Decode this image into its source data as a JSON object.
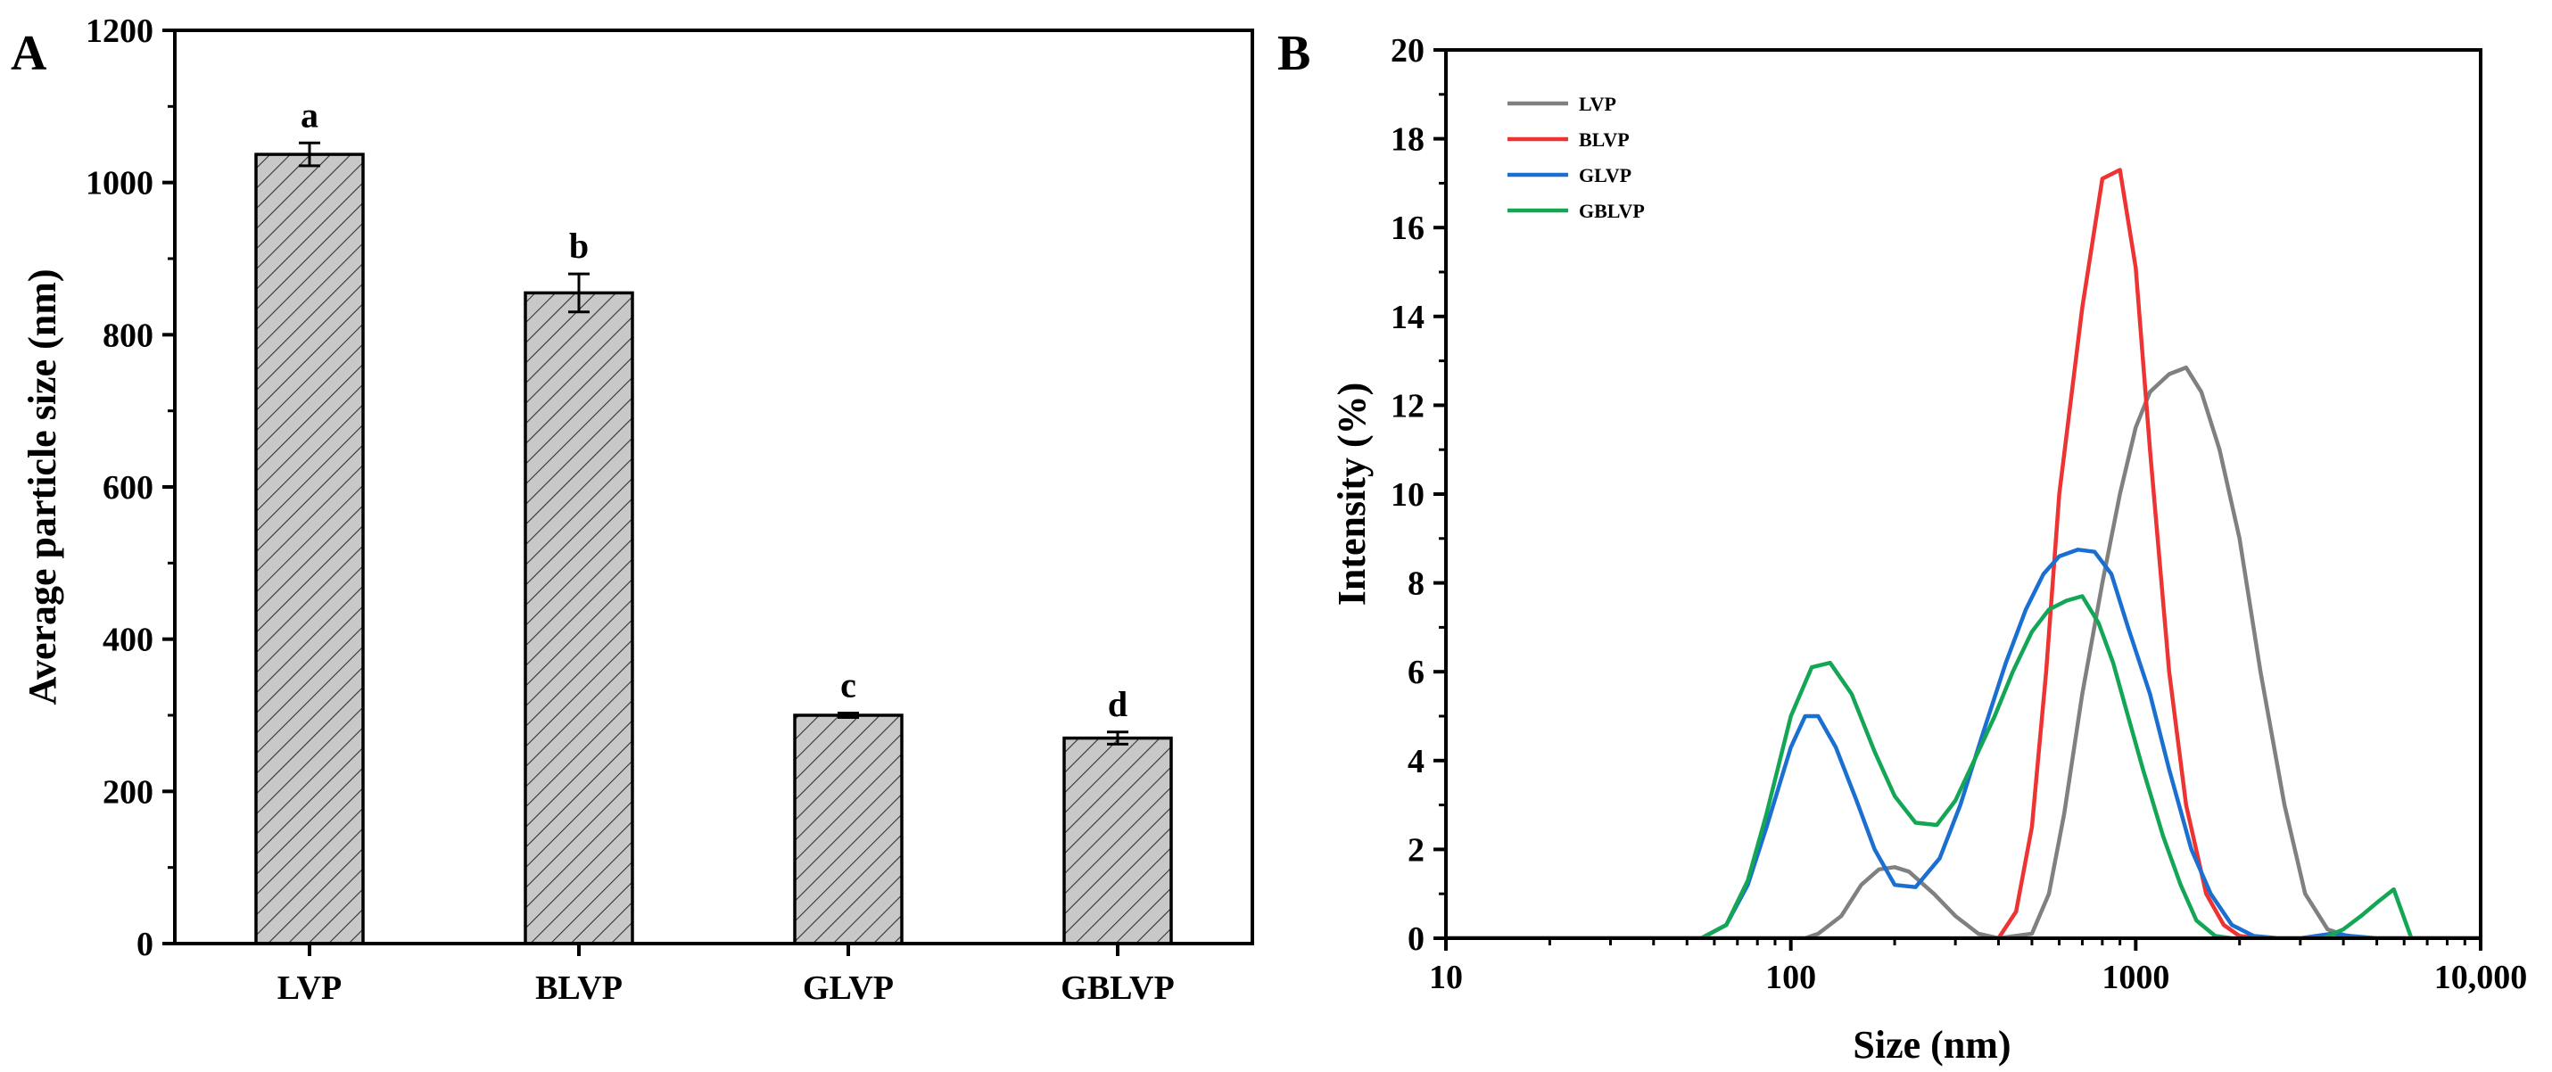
{
  "chart_data": [
    {
      "panel": "A",
      "type": "bar",
      "title": "",
      "xlabel": "",
      "ylabel": "Average particle size (nm)",
      "ylim": [
        0,
        1200
      ],
      "yticks": [
        "0",
        "200",
        "400",
        "600",
        "800",
        "1000",
        "1200"
      ],
      "categories": [
        "LVP",
        "BLVP",
        "GLVP",
        "GBLVP"
      ],
      "values": [
        1037,
        855,
        300,
        270
      ],
      "errors": [
        15,
        25,
        3,
        8
      ],
      "significance": [
        "a",
        "b",
        "c",
        "d"
      ],
      "colors": {
        "bar_fill": "#c8c8c8",
        "hatch": "#333333"
      }
    },
    {
      "panel": "B",
      "type": "line",
      "title": "",
      "xlabel": "Size (nm)",
      "ylabel": "Intensity (%)",
      "xscale": "log",
      "xlim": [
        10,
        10000
      ],
      "ylim": [
        0,
        20
      ],
      "xticks": [
        "10",
        "100",
        "1000",
        "10,000"
      ],
      "yticks": [
        "0",
        "2",
        "4",
        "6",
        "8",
        "10",
        "12",
        "14",
        "16",
        "18",
        "20"
      ],
      "legend_position": "top-left",
      "series": [
        {
          "name": "LVP",
          "color": "#808080",
          "x": [
            10,
            110,
            120,
            140,
            160,
            180,
            200,
            220,
            260,
            300,
            350,
            400,
            500,
            560,
            620,
            700,
            800,
            900,
            1000,
            1100,
            1250,
            1400,
            1550,
            1750,
            2000,
            2300,
            2700,
            3100,
            3600,
            4100,
            4700,
            6000,
            10000
          ],
          "y": [
            0,
            0,
            0.1,
            0.5,
            1.2,
            1.55,
            1.6,
            1.5,
            1.0,
            0.5,
            0.1,
            0,
            0.1,
            1.0,
            2.8,
            5.5,
            8.0,
            10.0,
            11.5,
            12.3,
            12.7,
            12.85,
            12.3,
            11.0,
            9.0,
            6.0,
            3.0,
            1.0,
            0.2,
            0.05,
            0,
            0,
            0
          ]
        },
        {
          "name": "BLVP",
          "color": "#ee3333",
          "x": [
            10,
            350,
            400,
            450,
            500,
            550,
            600,
            700,
            800,
            900,
            1000,
            1100,
            1250,
            1400,
            1600,
            1800,
            2000,
            2300,
            10000
          ],
          "y": [
            0,
            0,
            0,
            0.6,
            2.5,
            6.0,
            10.0,
            14.2,
            17.1,
            17.3,
            15.1,
            11.0,
            6.0,
            3.0,
            1.0,
            0.3,
            0.05,
            0,
            0
          ]
        },
        {
          "name": "GLVP",
          "color": "#1a6fd0",
          "x": [
            10,
            55,
            65,
            75,
            85,
            100,
            110,
            120,
            135,
            155,
            175,
            200,
            230,
            270,
            310,
            360,
            420,
            480,
            540,
            600,
            680,
            760,
            850,
            950,
            1100,
            1250,
            1450,
            1650,
            1900,
            2200,
            2600,
            3000,
            3700,
            4200,
            5000,
            6000,
            10000
          ],
          "y": [
            0,
            0,
            0.3,
            1.2,
            2.5,
            4.3,
            5.0,
            5.0,
            4.3,
            3.1,
            2.0,
            1.2,
            1.15,
            1.8,
            3.0,
            4.6,
            6.2,
            7.4,
            8.2,
            8.6,
            8.75,
            8.7,
            8.2,
            7.0,
            5.5,
            3.8,
            2.0,
            1.0,
            0.3,
            0.05,
            0,
            0,
            0.1,
            0.05,
            0,
            0,
            0
          ]
        },
        {
          "name": "GBLVP",
          "color": "#12a655",
          "x": [
            10,
            55,
            65,
            75,
            85,
            100,
            115,
            130,
            150,
            175,
            200,
            230,
            265,
            300,
            340,
            390,
            440,
            500,
            560,
            630,
            700,
            780,
            860,
            950,
            1050,
            1200,
            1350,
            1500,
            1700,
            1900,
            2200,
            3500,
            4000,
            4500,
            5000,
            5600,
            6300,
            10000
          ],
          "y": [
            0,
            0,
            0.3,
            1.3,
            2.8,
            5.0,
            6.1,
            6.2,
            5.5,
            4.2,
            3.2,
            2.6,
            2.55,
            3.1,
            4.0,
            5.0,
            6.0,
            6.9,
            7.4,
            7.6,
            7.7,
            7.1,
            6.2,
            5.0,
            3.8,
            2.3,
            1.2,
            0.4,
            0.05,
            0,
            0,
            0,
            0.2,
            0.5,
            0.8,
            1.1,
            0,
            0
          ]
        }
      ]
    }
  ]
}
